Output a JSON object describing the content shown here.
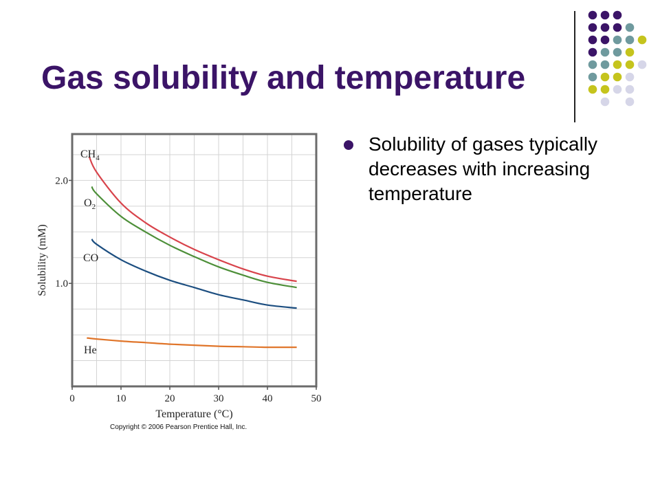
{
  "title": "Gas solubility and temperature",
  "bullets": [
    "Solubility of gases typically decreases with increasing temperature"
  ],
  "copyright": "Copyright © 2006 Pearson Prentice Hall, Inc.",
  "colors": {
    "title": "#3b1467",
    "purple": "#3b1467",
    "teal": "#6f9a9e",
    "olive": "#c5c41d",
    "lavender": "#d6d6e8"
  },
  "decor": {
    "dot_grid": [
      [
        "purple",
        "purple",
        "purple",
        null,
        null
      ],
      [
        "purple",
        "purple",
        "purple",
        "teal",
        null
      ],
      [
        "purple",
        "purple",
        "teal",
        "teal",
        "olive"
      ],
      [
        "purple",
        "teal",
        "teal",
        "olive",
        null
      ],
      [
        "teal",
        "teal",
        "olive",
        "olive",
        "lavender"
      ],
      [
        "teal",
        "olive",
        "olive",
        "lavender",
        null
      ],
      [
        "olive",
        "olive",
        "lavender",
        "lavender",
        null
      ],
      [
        null,
        "lavender",
        null,
        "lavender",
        null
      ]
    ]
  },
  "chart_data": {
    "type": "line",
    "xlabel": "Temperature (°C)",
    "ylabel": "Solubility (mM)",
    "xlim": [
      0,
      50
    ],
    "ylim": [
      0,
      2.45
    ],
    "xticks": [
      0,
      10,
      20,
      30,
      40,
      50
    ],
    "yticks": [
      1.0,
      2.0
    ],
    "ytick_labels": [
      "1.0",
      "2.0"
    ],
    "grid": true,
    "series": [
      {
        "name": "CH4",
        "label_main": "CH",
        "label_sub": "4",
        "color": "#d8434b",
        "x": [
          3.5,
          5,
          10,
          15,
          20,
          25,
          30,
          35,
          40,
          46
        ],
        "y": [
          2.23,
          2.08,
          1.78,
          1.59,
          1.45,
          1.33,
          1.23,
          1.14,
          1.07,
          1.02
        ]
      },
      {
        "name": "O2",
        "label_main": "O",
        "label_sub": "2",
        "color": "#4d8f39",
        "x": [
          4,
          5,
          10,
          15,
          20,
          25,
          30,
          35,
          40,
          46
        ],
        "y": [
          1.94,
          1.87,
          1.65,
          1.5,
          1.37,
          1.26,
          1.16,
          1.08,
          1.01,
          0.96
        ]
      },
      {
        "name": "CO",
        "label_main": "CO",
        "label_sub": "",
        "color": "#1c4e80",
        "x": [
          4,
          5,
          10,
          15,
          20,
          25,
          30,
          35,
          40,
          46
        ],
        "y": [
          1.43,
          1.38,
          1.23,
          1.12,
          1.03,
          0.96,
          0.89,
          0.84,
          0.79,
          0.76
        ]
      },
      {
        "name": "He",
        "label_main": "He",
        "label_sub": "",
        "color": "#e0752a",
        "x": [
          3,
          5,
          10,
          15,
          20,
          25,
          30,
          35,
          40,
          46
        ],
        "y": [
          0.47,
          0.46,
          0.44,
          0.425,
          0.41,
          0.4,
          0.39,
          0.385,
          0.38,
          0.38
        ]
      }
    ]
  }
}
